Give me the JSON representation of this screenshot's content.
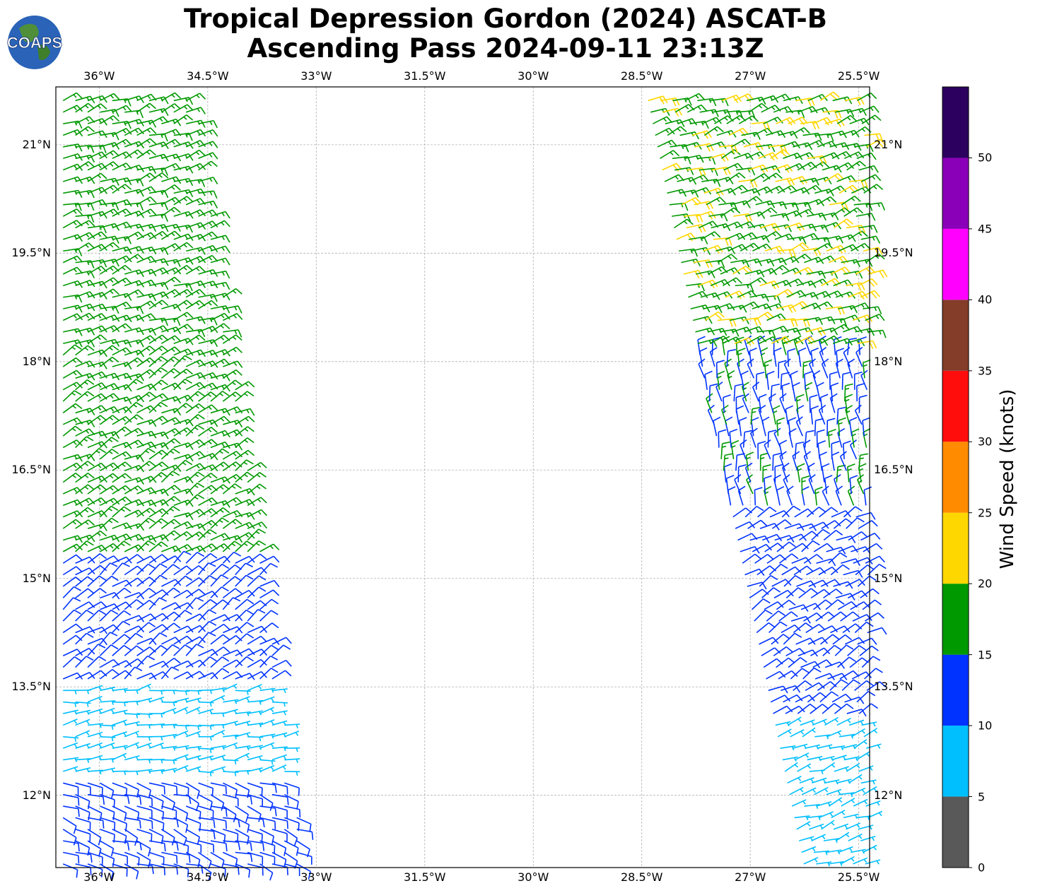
{
  "title_line1": "Tropical Depression Gordon (2024) ASCAT-B",
  "title_line2": "Ascending Pass 2024-09-11 23:13Z",
  "logo_text": "COAPS",
  "colorbar": {
    "label": "Wind Speed (knots)",
    "ticks": [
      "0",
      "5",
      "10",
      "15",
      "20",
      "25",
      "30",
      "35",
      "40",
      "45",
      "50"
    ],
    "bins": [
      {
        "from": 0,
        "to": 5,
        "color": "#595959"
      },
      {
        "from": 5,
        "to": 10,
        "color": "#00bfff"
      },
      {
        "from": 10,
        "to": 15,
        "color": "#0033ff"
      },
      {
        "from": 15,
        "to": 20,
        "color": "#009900"
      },
      {
        "from": 20,
        "to": 25,
        "color": "#ffd700"
      },
      {
        "from": 25,
        "to": 30,
        "color": "#ff8c00"
      },
      {
        "from": 30,
        "to": 35,
        "color": "#ff0d0d"
      },
      {
        "from": 35,
        "to": 40,
        "color": "#833d29"
      },
      {
        "from": 40,
        "to": 45,
        "color": "#ff00ff"
      },
      {
        "from": 45,
        "to": 50,
        "color": "#8a00b8"
      },
      {
        "from": 50,
        "to": 55,
        "color": "#2c005e"
      }
    ]
  },
  "x_ticks": [
    "36°W",
    "34.5°W",
    "33°W",
    "31.5°W",
    "30°W",
    "28.5°W",
    "27°W",
    "25.5°W"
  ],
  "y_ticks": [
    "21°N",
    "19.5°N",
    "18°N",
    "16.5°N",
    "15°N",
    "13.5°N",
    "12°N"
  ],
  "map_extent": {
    "lon_min": -36.6,
    "lon_max": -25.35,
    "lat_min": 11.0,
    "lat_max": 21.8
  },
  "grid": true,
  "chart_data": {
    "type": "wind-barbs",
    "units": "knots",
    "regions": [
      {
        "lat": [
          18.2,
          21.8
        ],
        "side": "west",
        "speed": 17,
        "dir_from": 70
      },
      {
        "lat": [
          15.3,
          18.2
        ],
        "side": "west",
        "speed": 17,
        "dir_from": 60
      },
      {
        "lat": [
          13.5,
          15.3
        ],
        "side": "west",
        "speed": 13,
        "dir_from": 55
      },
      {
        "lat": [
          12.2,
          13.5
        ],
        "side": "west",
        "speed": 8,
        "dir_from": 80
      },
      {
        "lat": [
          11.0,
          12.2
        ],
        "side": "west",
        "speed": 12,
        "dir_from": 110
      },
      {
        "lat": [
          18.1,
          21.8
        ],
        "side": "east",
        "speed": 19,
        "dir_from": 70
      },
      {
        "lat": [
          16.0,
          18.1
        ],
        "side": "east",
        "speed": 14,
        "dir_from": 350
      },
      {
        "lat": [
          13.0,
          16.0
        ],
        "side": "east",
        "speed": 13,
        "dir_from": 60
      },
      {
        "lat": [
          11.0,
          13.0
        ],
        "side": "east",
        "speed": 8,
        "dir_from": 70
      }
    ]
  }
}
